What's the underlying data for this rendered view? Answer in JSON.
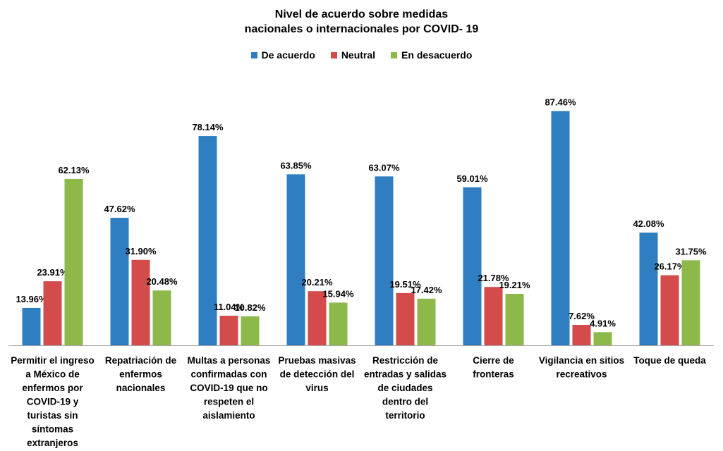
{
  "chart_data": {
    "type": "bar",
    "title": [
      "Nivel de acuerdo sobre medidas",
      "nacionales o internacionales por COVID- 19"
    ],
    "categories": [
      "Permitir el ingreso a México de enfermos por COVID-19 y turistas sin síntomas extranjeros",
      "Repatriación de enfermos nacionales",
      "Multas a personas confirmadas con COVID-19 que no respeten el aislamiento",
      "Pruebas masivas de detección del virus",
      "Restricción de entradas y salidas de ciudades dentro del territorio",
      "Cierre de fronteras",
      "Vigilancia en sitios recreativos",
      "Toque de queda"
    ],
    "category_lines": [
      [
        "Permitir el ingreso",
        "a México de",
        "enfermos por",
        "COVID-19 y",
        "turistas sin",
        "síntomas",
        "extranjeros"
      ],
      [
        "Repatriación de",
        "enfermos",
        "nacionales"
      ],
      [
        "Multas a personas",
        "confirmadas con",
        "COVID-19  que no",
        "respeten el",
        "aislamiento"
      ],
      [
        "Pruebas masivas",
        "de detección del",
        "virus"
      ],
      [
        "Restricción de",
        "entradas y salidas",
        "de ciudades",
        "dentro del",
        "territorio"
      ],
      [
        "Cierre de",
        "fronteras"
      ],
      [
        "Vigilancia en sitios",
        "recreativos"
      ],
      [
        "Toque de queda"
      ]
    ],
    "series": [
      {
        "name": "De acuerdo",
        "color": "#2E7EC1",
        "values": [
          13.96,
          47.62,
          78.14,
          63.85,
          63.07,
          59.01,
          87.46,
          42.08
        ],
        "labels": [
          "13.96%",
          "47.62%",
          "78.14%",
          "63.85%",
          "63.07%",
          "59.01%",
          "87.46%",
          "42.08%"
        ]
      },
      {
        "name": "Neutral",
        "color": "#D34B4B",
        "values": [
          23.91,
          31.9,
          11.04,
          20.21,
          19.51,
          21.78,
          7.62,
          26.17
        ],
        "labels": [
          "23.91%",
          "31.90%",
          "11.04%",
          "20.21%",
          "19.51%",
          "21.78%",
          "7.62%",
          "26.17%"
        ]
      },
      {
        "name": "En desacuerdo",
        "color": "#8DB94A",
        "values": [
          62.13,
          20.48,
          10.82,
          15.94,
          17.42,
          19.21,
          4.91,
          31.75
        ],
        "labels": [
          "62.13%",
          "20.48%",
          "10.82%",
          "15.94%",
          "17.42%",
          "19.21%",
          "4.91%",
          "31.75%"
        ]
      }
    ],
    "ylim": [
      0,
      100
    ],
    "grid": false,
    "legend_position": "top"
  }
}
